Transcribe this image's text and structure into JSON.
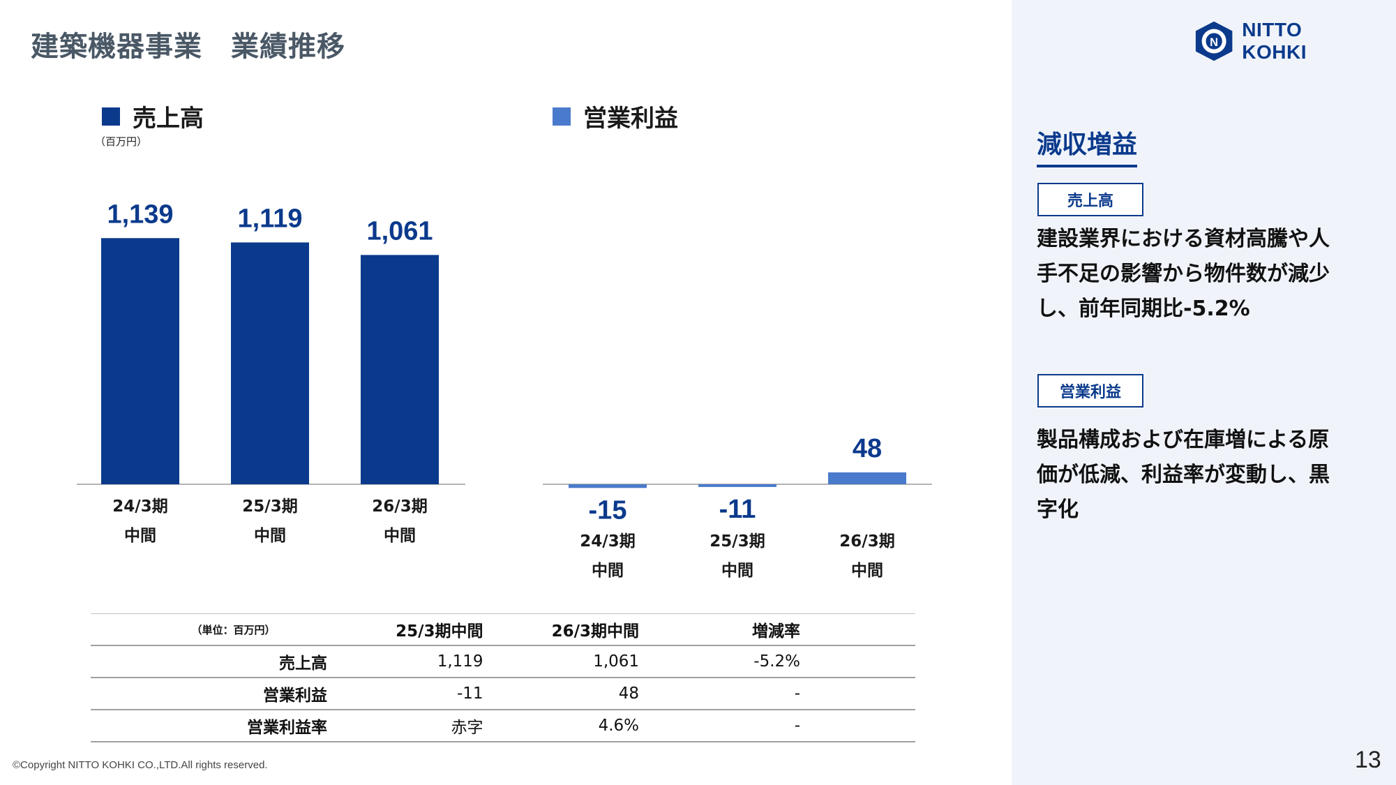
{
  "slide_title": "建築機器事業　業績推移",
  "logo": {
    "text": "NITTO KOHKI",
    "mark_color": "#0b3a8c"
  },
  "left_chart": {
    "legend": "売上高",
    "unit": "（百万円）"
  },
  "right_chart": {
    "legend": "営業利益"
  },
  "chart_data": [
    {
      "type": "bar",
      "categories": [
        [
          "24/3期",
          "中間"
        ],
        [
          "25/3期",
          "中間"
        ],
        [
          "26/3期",
          "中間"
        ]
      ],
      "series": [
        {
          "name": "売上高",
          "values": [
            1139,
            1119,
            1061
          ],
          "labels": [
            "1,139",
            "1,119",
            "1,061"
          ],
          "color": "#0b3a8c"
        }
      ]
    },
    {
      "type": "bar",
      "categories": [
        [
          "24/3期",
          "中間"
        ],
        [
          "25/3期",
          "中間"
        ],
        [
          "26/3期",
          "中間"
        ]
      ],
      "series": [
        {
          "name": "営業利益",
          "values": [
            -15,
            -11,
            48
          ],
          "labels": [
            "-15",
            "-11",
            "48"
          ],
          "color": "#4a7acb"
        }
      ]
    }
  ],
  "table": {
    "unit_label": "（単位：百万円）",
    "headers": [
      "25/3期中間",
      "26/3期中間",
      "増減率"
    ],
    "rows": [
      {
        "label": "売上高",
        "values": [
          "1,119",
          "1,061",
          "-5.2%"
        ]
      },
      {
        "label": "営業利益",
        "values": [
          "-11",
          "48",
          "-"
        ]
      },
      {
        "label": "営業利益率",
        "values": [
          "赤字",
          "4.6%",
          "-"
        ]
      }
    ]
  },
  "panel": {
    "heading": "減収増益",
    "sections": [
      {
        "tag": "売上高",
        "lines": [
          "建設業界における資材高騰や人",
          "手不足の影響から物件数が減少",
          "し、前年同期比-5.2%"
        ]
      },
      {
        "tag": "営業利益",
        "lines": [
          "製品構成および在庫増による原",
          "価が低減、利益率が変動し、黒",
          "字化"
        ]
      }
    ]
  },
  "copyright": "©Copyright NITTO KOHKI CO.,LTD.All rights reserved.",
  "page_number": "13"
}
